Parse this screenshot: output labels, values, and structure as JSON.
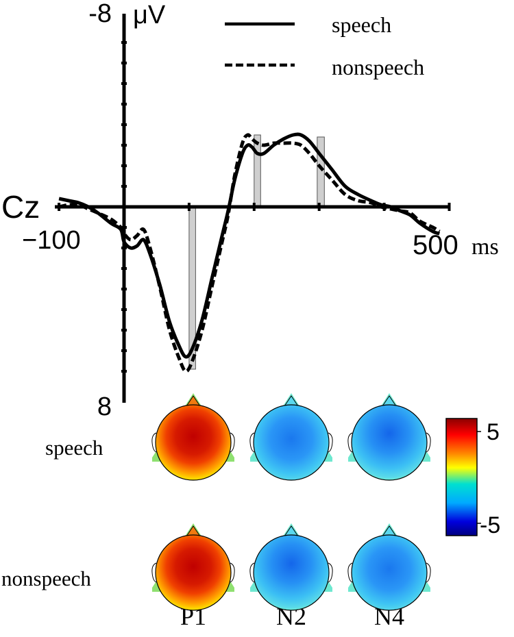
{
  "chart_data": {
    "type": "line",
    "channel_label": "Cz",
    "y_unit": "μV",
    "x_unit": "ms",
    "x_tick_labels": {
      "min": "−100",
      "max": "500"
    },
    "y_tick_labels": {
      "top": "-8",
      "bottom": "8"
    },
    "xlim": [
      -100,
      500
    ],
    "ylim": [
      -8,
      8
    ],
    "y_inverted": true,
    "legend_position": "top-right",
    "series": [
      {
        "name": "speech",
        "line_style": "solid",
        "color": "#000000",
        "points": [
          [
            -100,
            -0.4
          ],
          [
            -85,
            -0.3
          ],
          [
            -70,
            -0.2
          ],
          [
            -55,
            0.0
          ],
          [
            -40,
            0.3
          ],
          [
            -20,
            0.8
          ],
          [
            -5,
            1.1
          ],
          [
            0,
            1.7
          ],
          [
            10,
            2.0
          ],
          [
            20,
            1.9
          ],
          [
            30,
            1.6
          ],
          [
            40,
            2.3
          ],
          [
            55,
            3.8
          ],
          [
            70,
            5.6
          ],
          [
            85,
            6.8
          ],
          [
            95,
            7.3
          ],
          [
            105,
            6.9
          ],
          [
            120,
            5.5
          ],
          [
            135,
            3.5
          ],
          [
            150,
            1.5
          ],
          [
            160,
            0.2
          ],
          [
            170,
            -1.3
          ],
          [
            182,
            -2.6
          ],
          [
            190,
            -3.0
          ],
          [
            197,
            -2.9
          ],
          [
            205,
            -2.6
          ],
          [
            215,
            -2.6
          ],
          [
            230,
            -3.0
          ],
          [
            245,
            -3.3
          ],
          [
            260,
            -3.5
          ],
          [
            272,
            -3.5
          ],
          [
            285,
            -3.2
          ],
          [
            300,
            -2.6
          ],
          [
            320,
            -1.8
          ],
          [
            340,
            -1.0
          ],
          [
            360,
            -0.6
          ],
          [
            380,
            -0.3
          ],
          [
            395,
            -0.1
          ],
          [
            410,
            0.0
          ],
          [
            425,
            0.2
          ],
          [
            440,
            0.4
          ],
          [
            455,
            0.8
          ],
          [
            475,
            1.2
          ],
          [
            485,
            1.3
          ]
        ]
      },
      {
        "name": "nonspeech",
        "line_style": "dashed",
        "color": "#000000",
        "points": [
          [
            -100,
            0.0
          ],
          [
            -85,
            -0.1
          ],
          [
            -70,
            -0.1
          ],
          [
            -55,
            0.1
          ],
          [
            -40,
            0.3
          ],
          [
            -20,
            0.6
          ],
          [
            -5,
            1.0
          ],
          [
            0,
            1.3
          ],
          [
            10,
            1.6
          ],
          [
            20,
            1.4
          ],
          [
            30,
            1.1
          ],
          [
            40,
            2.0
          ],
          [
            55,
            3.9
          ],
          [
            70,
            6.0
          ],
          [
            85,
            7.4
          ],
          [
            95,
            8.0
          ],
          [
            105,
            7.5
          ],
          [
            120,
            6.0
          ],
          [
            135,
            3.9
          ],
          [
            150,
            1.8
          ],
          [
            160,
            0.4
          ],
          [
            170,
            -1.5
          ],
          [
            182,
            -3.1
          ],
          [
            190,
            -3.5
          ],
          [
            197,
            -3.3
          ],
          [
            205,
            -3.1
          ],
          [
            215,
            -3.0
          ],
          [
            230,
            -3.1
          ],
          [
            245,
            -3.1
          ],
          [
            260,
            -3.1
          ],
          [
            272,
            -3.0
          ],
          [
            285,
            -2.6
          ],
          [
            300,
            -2.0
          ],
          [
            320,
            -1.3
          ],
          [
            340,
            -0.6
          ],
          [
            360,
            -0.3
          ],
          [
            380,
            -0.2
          ],
          [
            395,
            0.0
          ],
          [
            410,
            0.1
          ],
          [
            425,
            0.2
          ],
          [
            440,
            0.3
          ],
          [
            455,
            0.7
          ],
          [
            475,
            1.0
          ],
          [
            485,
            1.2
          ]
        ]
      }
    ],
    "highlight_windows": [
      {
        "component": "P1",
        "x": [
          100,
          110
        ],
        "y": [
          0,
          7.9
        ]
      },
      {
        "component": "N2",
        "x": [
          200,
          210
        ],
        "y": [
          0,
          -3.5
        ]
      },
      {
        "component": "N4",
        "x": [
          297,
          308
        ],
        "y": [
          0,
          -3.4
        ]
      }
    ]
  },
  "topomaps": {
    "rows": [
      "speech",
      "nonspeech"
    ],
    "columns": [
      "P1",
      "N2",
      "N4"
    ],
    "values_uV": [
      [
        5.0,
        -3.2,
        -3.6
      ],
      [
        5.0,
        -3.6,
        -3.2
      ]
    ]
  },
  "colorbar": {
    "range": [
      -5,
      5
    ],
    "labels": {
      "max": "5",
      "min": "-5"
    },
    "stops": [
      "#8b0000",
      "#ff0000",
      "#ff8800",
      "#ffff00",
      "#00e0d0",
      "#00aaff",
      "#0000cc",
      "#000080"
    ]
  }
}
